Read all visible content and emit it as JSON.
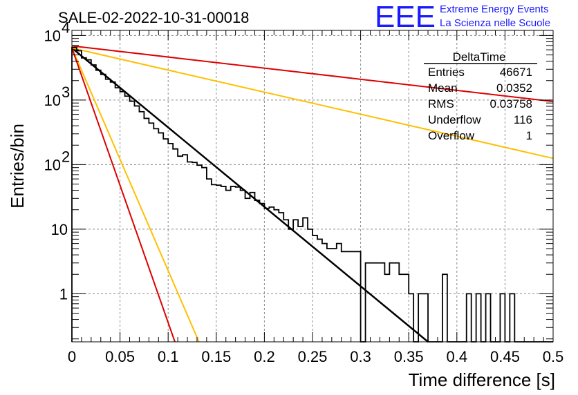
{
  "chart_data": {
    "type": "bar",
    "title": "SALE-02-2022-10-31-00018",
    "xlabel": "Time difference [s]",
    "ylabel": "Entries/bin",
    "xlim": [
      0,
      0.5
    ],
    "ylim": [
      0.18,
      12000
    ],
    "log_y": true,
    "grid": true,
    "x_ticks": [
      "0",
      "0.05",
      "0.1",
      "0.15",
      "0.2",
      "0.25",
      "0.3",
      "0.35",
      "0.4",
      "0.45",
      "0.5"
    ],
    "y_ticks": [
      {
        "value": 1,
        "label": "1"
      },
      {
        "value": 10,
        "label": "10"
      },
      {
        "value": 100,
        "label": "10",
        "exp": "2"
      },
      {
        "value": 1000,
        "label": "10",
        "exp": "3"
      },
      {
        "value": 10000,
        "label": "10",
        "exp": "4"
      }
    ],
    "bin_width": 0.005,
    "histogram": {
      "name": "DeltaTime",
      "color": "#000000",
      "values": [
        6500,
        5800,
        4500,
        4200,
        3500,
        2900,
        2500,
        2100,
        1900,
        1550,
        1350,
        1150,
        960,
        810,
        660,
        520,
        440,
        360,
        310,
        250,
        212,
        175,
        135,
        142,
        110,
        108,
        98,
        90,
        60,
        49,
        48,
        46,
        40,
        46,
        45,
        40,
        30,
        37,
        28,
        25,
        21,
        22,
        20,
        18,
        14,
        10,
        14,
        11,
        15,
        10,
        8,
        7,
        6,
        5,
        5,
        6,
        4.5,
        4.5,
        4.5,
        4.5,
        0,
        3,
        3,
        3,
        3,
        2,
        3,
        3,
        2,
        2,
        1,
        0,
        1,
        1,
        0,
        0,
        0,
        2,
        0,
        0,
        0,
        0,
        1,
        0,
        1,
        0,
        1,
        0,
        0,
        1,
        0,
        1,
        0,
        0,
        0,
        0,
        0,
        0,
        0,
        0
      ]
    },
    "fits": [
      {
        "name": "fit",
        "color": "#000000",
        "x": [
          0,
          0.37
        ],
        "y": [
          6400,
          0.18
        ]
      },
      {
        "name": "upper-bound-1",
        "color": "#ffbf00",
        "x": [
          0,
          0.5
        ],
        "y": [
          6400,
          125
        ]
      },
      {
        "name": "upper-bound-2",
        "color": "#dd0000",
        "x": [
          0,
          0.5
        ],
        "y": [
          6900,
          950
        ]
      },
      {
        "name": "lower-bound-1",
        "color": "#ffbf00",
        "x": [
          0,
          0.132
        ],
        "y": [
          6400,
          0.18
        ]
      },
      {
        "name": "lower-bound-2",
        "color": "#dd0000",
        "x": [
          0,
          0.107
        ],
        "y": [
          6400,
          0.18
        ]
      }
    ],
    "stats_box": {
      "title": "DeltaTime",
      "rows": [
        {
          "label": "Entries",
          "value": "46671"
        },
        {
          "label": "Mean",
          "value": "0.0352"
        },
        {
          "label": "RMS",
          "value": "0.03758"
        },
        {
          "label": "Underflow",
          "value": "116"
        },
        {
          "label": "Overflow",
          "value": "1"
        }
      ]
    }
  },
  "logo": {
    "mark": "EEE",
    "line1": "Extreme Energy Events",
    "line2": "La Scienza nelle Scuole",
    "color": "#1a1aff"
  }
}
